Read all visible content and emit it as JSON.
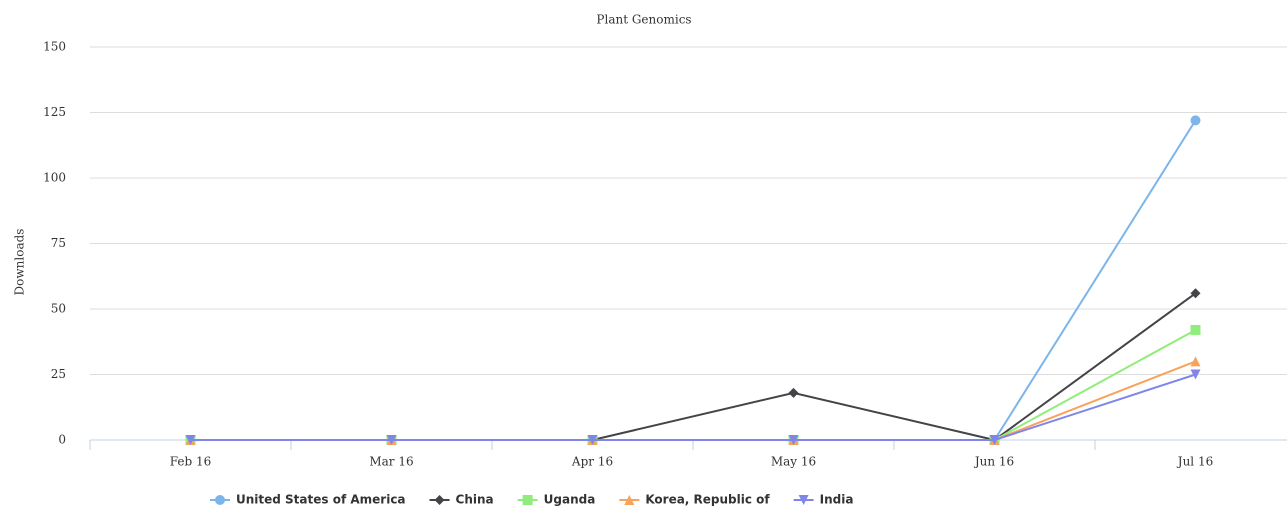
{
  "chart_data": {
    "type": "line",
    "subtitle": "Plant Genomics",
    "y_label": "Downloads",
    "categories": [
      "Feb 16",
      "Mar 16",
      "Apr 16",
      "May 16",
      "Jun 16",
      "Jul 16"
    ],
    "ylim": [
      0,
      150
    ],
    "yticks": [
      0,
      25,
      50,
      75,
      100,
      125,
      150
    ],
    "grid": true,
    "series": [
      {
        "name": "United States of America",
        "color": "#7cb5ec",
        "marker": "circle",
        "values": [
          0,
          0,
          0,
          0,
          0,
          122
        ]
      },
      {
        "name": "China",
        "color": "#434348",
        "marker": "diamond",
        "values": [
          0,
          0,
          0,
          18,
          0,
          56
        ]
      },
      {
        "name": "Uganda",
        "color": "#90ed7d",
        "marker": "square",
        "values": [
          0,
          0,
          0,
          0,
          0,
          42
        ]
      },
      {
        "name": "Korea, Republic of",
        "color": "#f7a35c",
        "marker": "triangle",
        "values": [
          0,
          0,
          0,
          0,
          0,
          30
        ]
      },
      {
        "name": "India",
        "color": "#8085e9",
        "marker": "triangle-down",
        "values": [
          0,
          0,
          0,
          0,
          0,
          25
        ]
      }
    ]
  }
}
